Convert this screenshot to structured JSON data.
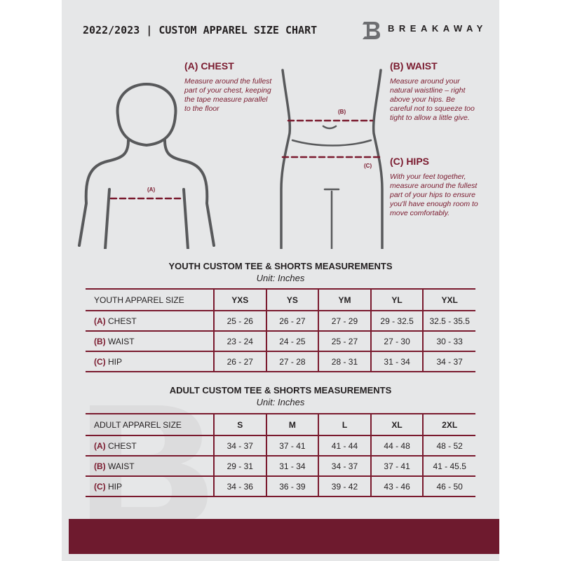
{
  "header": {
    "title": "2022/2023  |  CUSTOM APPAREL SIZE CHART",
    "brand": "BREAKAWAY",
    "logo_letter": "B"
  },
  "chest": {
    "heading": "(A) CHEST",
    "text": "Measure around the fullest part of your chest, keeping the tape measure parallel to the floor",
    "tape": "(A)"
  },
  "waist": {
    "heading": "(B) WAIST",
    "text": "Measure around your natural waistline – right above your hips. Be careful not to squeeze too tight to allow a little give.",
    "tape": "(B)"
  },
  "hips": {
    "heading": "(C) HIPS",
    "text": "With your feet together, measure around the fullest part of your hips to ensure you'll have enough room to move comfortably.",
    "tape": "(C)"
  },
  "youth": {
    "title": "YOUTH CUSTOM TEE & SHORTS MEASUREMENTS",
    "unit": "Unit: Inches",
    "header": "YOUTH APPAREL SIZE",
    "sizes": [
      "YXS",
      "YS",
      "YM",
      "YL",
      "YXL"
    ],
    "rows": [
      {
        "tag": "(A)",
        "label": "CHEST",
        "values": [
          "25 - 26",
          "26 - 27",
          "27 - 29",
          "29 - 32.5",
          "32.5 - 35.5"
        ]
      },
      {
        "tag": "(B)",
        "label": "WAIST",
        "values": [
          "23 - 24",
          "24 - 25",
          "25 - 27",
          "27 - 30",
          "30 - 33"
        ]
      },
      {
        "tag": "(C)",
        "label": "HIP",
        "values": [
          "26 - 27",
          "27 - 28",
          "28 - 31",
          "31 - 34",
          "34 - 37"
        ]
      }
    ]
  },
  "adult": {
    "title": "ADULT CUSTOM TEE & SHORTS MEASUREMENTS",
    "unit": "Unit: Inches",
    "header": "ADULT APPAREL SIZE",
    "sizes": [
      "S",
      "M",
      "L",
      "XL",
      "2XL"
    ],
    "rows": [
      {
        "tag": "(A)",
        "label": "CHEST",
        "values": [
          "34 - 37",
          "37 - 41",
          "41 - 44",
          "44 - 48",
          "48 - 52"
        ]
      },
      {
        "tag": "(B)",
        "label": "WAIST",
        "values": [
          "29 - 31",
          "31 - 34",
          "34 - 37",
          "37 - 41",
          "41 - 45.5"
        ]
      },
      {
        "tag": "(C)",
        "label": "HIP",
        "values": [
          "34 - 36",
          "36 - 39",
          "39 - 42",
          "43 - 46",
          "46 - 50"
        ]
      }
    ]
  },
  "colors": {
    "accent": "#7a1a2e",
    "footer": "#6e1a2e",
    "background": "#e6e7e8"
  }
}
